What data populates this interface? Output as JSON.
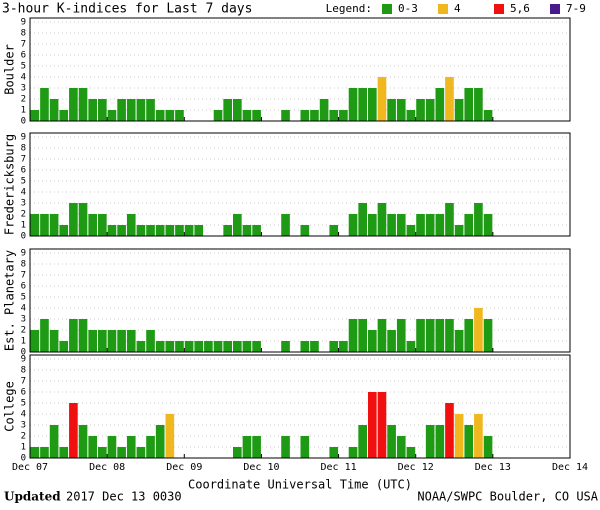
{
  "title": "3-hour K-indices for Last 7 days",
  "legend": {
    "label": "Legend:",
    "items": [
      {
        "label": "0-3",
        "color": "#1e9a14",
        "range": [
          0,
          3
        ]
      },
      {
        "label": "4",
        "color": "#f0b81e",
        "range": [
          4,
          4
        ]
      },
      {
        "label": "5,6",
        "color": "#f01010",
        "range": [
          5,
          6
        ]
      },
      {
        "label": "7-9",
        "color": "#4a1a8c",
        "range": [
          7,
          9
        ]
      }
    ]
  },
  "chart_data": [
    {
      "type": "bar",
      "ylabel": "Boulder",
      "ylim": [
        0,
        9
      ],
      "yticks": [
        0,
        1,
        2,
        3,
        4,
        5,
        6,
        7,
        8,
        9
      ],
      "xlim": [
        0,
        168
      ],
      "x": [
        0,
        3,
        6,
        9,
        12,
        15,
        18,
        21,
        24,
        27,
        30,
        33,
        36,
        39,
        42,
        45,
        48,
        51,
        54,
        57,
        60,
        63,
        66,
        69,
        72,
        75,
        78,
        81,
        84,
        87,
        90,
        93,
        96,
        99,
        102,
        105,
        108,
        111,
        114,
        117,
        120,
        123,
        126,
        129,
        132,
        135,
        138,
        141
      ],
      "values": [
        1,
        3,
        2,
        1,
        3,
        3,
        2,
        2,
        1,
        2,
        2,
        2,
        2,
        1,
        1,
        1,
        0,
        0,
        0,
        1,
        2,
        2,
        1,
        1,
        0,
        0,
        1,
        0,
        1,
        1,
        2,
        1,
        1,
        3,
        3,
        3,
        4,
        2,
        2,
        1,
        2,
        2,
        3,
        4,
        2,
        3,
        3,
        1
      ]
    },
    {
      "type": "bar",
      "ylabel": "Fredericksburg",
      "ylim": [
        0,
        9
      ],
      "yticks": [
        0,
        1,
        2,
        3,
        4,
        5,
        6,
        7,
        8,
        9
      ],
      "xlim": [
        0,
        168
      ],
      "x": [
        0,
        3,
        6,
        9,
        12,
        15,
        18,
        21,
        24,
        27,
        30,
        33,
        36,
        39,
        42,
        45,
        48,
        51,
        54,
        57,
        60,
        63,
        66,
        69,
        72,
        75,
        78,
        81,
        84,
        87,
        90,
        93,
        96,
        99,
        102,
        105,
        108,
        111,
        114,
        117,
        120,
        123,
        126,
        129,
        132,
        135,
        138,
        141
      ],
      "values": [
        2,
        2,
        2,
        1,
        3,
        3,
        2,
        2,
        1,
        1,
        2,
        1,
        1,
        1,
        1,
        1,
        1,
        1,
        0,
        0,
        1,
        2,
        1,
        1,
        0,
        0,
        2,
        0,
        1,
        0,
        0,
        1,
        0,
        2,
        3,
        2,
        3,
        2,
        2,
        1,
        2,
        2,
        2,
        3,
        1,
        2,
        3,
        2
      ]
    },
    {
      "type": "bar",
      "ylabel": "Est. Planetary",
      "ylim": [
        0,
        9
      ],
      "yticks": [
        0,
        1,
        2,
        3,
        4,
        5,
        6,
        7,
        8,
        9
      ],
      "xlim": [
        0,
        168
      ],
      "x": [
        0,
        3,
        6,
        9,
        12,
        15,
        18,
        21,
        24,
        27,
        30,
        33,
        36,
        39,
        42,
        45,
        48,
        51,
        54,
        57,
        60,
        63,
        66,
        69,
        72,
        75,
        78,
        81,
        84,
        87,
        90,
        93,
        96,
        99,
        102,
        105,
        108,
        111,
        114,
        117,
        120,
        123,
        126,
        129,
        132,
        135,
        138,
        141
      ],
      "values": [
        2,
        3,
        2,
        1,
        3,
        3,
        2,
        2,
        2,
        2,
        2,
        1,
        2,
        1,
        1,
        1,
        1,
        1,
        1,
        1,
        1,
        1,
        1,
        1,
        0,
        0,
        1,
        0,
        1,
        1,
        0,
        1,
        1,
        3,
        3,
        2,
        3,
        2,
        3,
        1,
        3,
        3,
        3,
        3,
        2,
        3,
        4,
        3
      ]
    },
    {
      "type": "bar",
      "ylabel": "College",
      "ylim": [
        0,
        9
      ],
      "yticks": [
        0,
        1,
        2,
        3,
        4,
        5,
        6,
        7,
        8,
        9
      ],
      "xlim": [
        0,
        168
      ],
      "x": [
        0,
        3,
        6,
        9,
        12,
        15,
        18,
        21,
        24,
        27,
        30,
        33,
        36,
        39,
        42,
        45,
        48,
        51,
        54,
        57,
        60,
        63,
        66,
        69,
        72,
        75,
        78,
        81,
        84,
        87,
        90,
        93,
        96,
        99,
        102,
        105,
        108,
        111,
        114,
        117,
        120,
        123,
        126,
        129,
        132,
        135,
        138,
        141
      ],
      "values": [
        1,
        1,
        3,
        1,
        5,
        3,
        2,
        1,
        2,
        1,
        2,
        1,
        2,
        3,
        4,
        0,
        0,
        0,
        0,
        0,
        0,
        1,
        2,
        2,
        0,
        0,
        2,
        0,
        2,
        0,
        0,
        1,
        0,
        1,
        3,
        6,
        6,
        3,
        2,
        1,
        0,
        3,
        3,
        5,
        4,
        3,
        4,
        2
      ],
      "xlabel": "Coordinate Universal Time (UTC)",
      "xticks": [
        {
          "value": 0,
          "label": "Dec 07"
        },
        {
          "value": 24,
          "label": "Dec 08"
        },
        {
          "value": 48,
          "label": "Dec 09"
        },
        {
          "value": 72,
          "label": "Dec 10"
        },
        {
          "value": 96,
          "label": "Dec 11"
        },
        {
          "value": 120,
          "label": "Dec 12"
        },
        {
          "value": 144,
          "label": "Dec 13"
        },
        {
          "value": 168,
          "label": "Dec 14"
        }
      ]
    }
  ],
  "footer": {
    "updated": "Updated",
    "timestamp": "2017 Dec 13 0030",
    "credit": "NOAA/SWPC Boulder, CO USA"
  }
}
